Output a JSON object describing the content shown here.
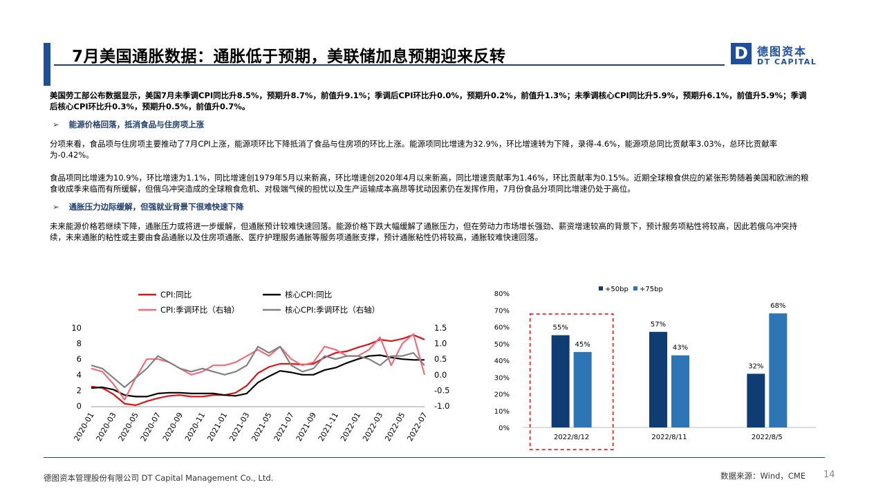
{
  "header": {
    "title": "7月美国通胀数据：通胀低于预期，美联储加息预期迎来反转",
    "logo_letter": "D",
    "logo_cn": "德图资本",
    "logo_en": "DT CAPITAL"
  },
  "body": {
    "intro": "美国劳工部公布数据显示，美国7月未季调CPI同比升8.5%，预期升8.7%，前值升9.1%；季调后CPI环比升0.0%，预期升0.2%，前值升1.3%；未季调核心CPI同比升5.9%，预期升6.1%，前值升5.9%；季调后核心CPI环比升0.3%，预期升0.5%，前值升0.7%。",
    "section1_arrow": "➢",
    "section1_title": "能源价格回落，抵消食品与住房项上涨",
    "para1": "分项来看，食品项与住房项主要推动了7月CPI上涨，能源项环比下降抵消了食品与住房项的环比上涨。能源项同比增速为32.9%，环比增速转为下降，录得-4.6%，能源项总同比贡献率3.03%，总环比贡献率为-0.42%。",
    "para2": "食品项同比增速为10.9%，环比增速为1.1%，同比增速创1979年5月以来新高，环比增速创2020年4月以来新高，同比增速贡献率为1.46%，环比贡献率为0.15%。近期全球粮食供应的紧张形势随着美国和欧洲的粮食收成季来临而有所缓解，但俄乌冲突造成的全球粮食危机、对极端气候的担忧以及生产运输成本高昂等扰动因素仍在发挥作用，7月份食品分项同比增速仍处于高位。",
    "section2_arrow": "➢",
    "section2_title": "通胀压力边际缓解，但强就业背景下很难快速下降",
    "para3": "未来能源价格若继续下降，通胀压力或将进一步缓解，但通胀预计较难快速回落。能源价格下跌大幅缓解了通胀压力，但在劳动力市场增长强劲、薪资增速较高的背景下，预计服务项粘性将较高，因此若俄乌冲突持续，未来通胀的粘性或主要由食品通胀以及住房项通胀、医疗护理服务通胀等服务项通胀支撑，预计通胀粘性仍将较高，通胀较难快速回落。"
  },
  "footer": {
    "company": "德图资本管理股份有限公司 DT Capital Management Co., Ltd.",
    "source": "数据来源：Wind，CME",
    "page": "14"
  },
  "colors": {
    "brand": "#1f4e9c",
    "cpi_yoy": "#d7141a",
    "core_yoy": "#000000",
    "cpi_mom": "#f06c7a",
    "core_mom": "#808080",
    "bar_50": "#0f3d73",
    "bar_75": "#2e75b6",
    "highlight": "#e8262d"
  },
  "chart_data": [
    {
      "type": "line",
      "legend": [
        "CPI:同比",
        "核心CPI:同比",
        "CPI:季调环比（右轴）",
        "核心CPI:季调环比（右轴）"
      ],
      "x_ticks": [
        "2020-01",
        "2020-03",
        "2020-05",
        "2020-07",
        "2020-09",
        "2020-11",
        "2021-01",
        "2021-03",
        "2021-05",
        "2021-07",
        "2021-09",
        "2021-11",
        "2022-01",
        "2022-03",
        "2022-05",
        "2022-07"
      ],
      "ylim_left": [
        0,
        10
      ],
      "yticks_left": [
        "0",
        "2",
        "4",
        "6",
        "8",
        "10"
      ],
      "ylim_right": [
        -1.0,
        1.5
      ],
      "yticks_right": [
        "-1.0",
        "-0.5",
        "0.0",
        "0.5",
        "1.0",
        "1.5"
      ],
      "x": [
        "2020-01",
        "2020-02",
        "2020-03",
        "2020-04",
        "2020-05",
        "2020-06",
        "2020-07",
        "2020-08",
        "2020-09",
        "2020-10",
        "2020-11",
        "2020-12",
        "2021-01",
        "2021-02",
        "2021-03",
        "2021-04",
        "2021-05",
        "2021-06",
        "2021-07",
        "2021-08",
        "2021-09",
        "2021-10",
        "2021-11",
        "2021-12",
        "2022-01",
        "2022-02",
        "2022-03",
        "2022-04",
        "2022-05",
        "2022-06",
        "2022-07"
      ],
      "series": [
        {
          "name": "CPI:同比",
          "axis": "left",
          "values": [
            2.5,
            2.3,
            1.5,
            0.3,
            0.1,
            0.6,
            1.0,
            1.3,
            1.4,
            1.2,
            1.2,
            1.4,
            1.4,
            1.7,
            2.6,
            4.2,
            5.0,
            5.4,
            5.4,
            5.3,
            5.4,
            6.2,
            6.8,
            7.0,
            7.5,
            7.9,
            8.5,
            8.3,
            8.6,
            9.1,
            8.5
          ]
        },
        {
          "name": "核心CPI:同比",
          "axis": "left",
          "values": [
            2.3,
            2.4,
            2.1,
            1.4,
            1.2,
            1.2,
            1.6,
            1.7,
            1.7,
            1.6,
            1.6,
            1.6,
            1.4,
            1.3,
            1.6,
            3.0,
            3.8,
            4.5,
            4.3,
            4.0,
            4.0,
            4.6,
            4.9,
            5.5,
            6.0,
            6.4,
            6.5,
            6.2,
            6.0,
            5.9,
            5.9
          ]
        },
        {
          "name": "CPI:季调环比（右轴）",
          "axis": "right",
          "values": [
            0.2,
            0.1,
            -0.3,
            -0.8,
            -0.1,
            0.5,
            0.5,
            0.4,
            0.2,
            0.0,
            0.1,
            0.3,
            0.3,
            0.4,
            0.6,
            0.8,
            0.6,
            0.9,
            0.5,
            0.3,
            0.4,
            0.9,
            0.8,
            0.6,
            0.6,
            0.8,
            1.2,
            0.3,
            1.0,
            1.3,
            0.0
          ]
        },
        {
          "name": "核心CPI:季调环比（右轴）",
          "axis": "right",
          "values": [
            0.3,
            0.2,
            -0.1,
            -0.4,
            -0.1,
            0.2,
            0.6,
            0.4,
            0.2,
            0.1,
            0.2,
            0.1,
            0.0,
            0.1,
            0.3,
            0.9,
            0.7,
            0.9,
            0.3,
            0.1,
            0.2,
            0.6,
            0.5,
            0.6,
            0.6,
            0.5,
            0.3,
            0.6,
            0.6,
            0.7,
            0.3
          ]
        }
      ]
    },
    {
      "type": "bar",
      "legend": [
        "+50bp",
        "+75bp"
      ],
      "categories": [
        "2022/8/12",
        "2022/8/11",
        "2022/8/5"
      ],
      "series": [
        {
          "name": "+50bp",
          "values": [
            55,
            57,
            32
          ],
          "labels": [
            "55%",
            "57%",
            "32%"
          ]
        },
        {
          "name": "+75bp",
          "values": [
            45,
            43,
            68
          ],
          "labels": [
            "45%",
            "43%",
            "68%"
          ]
        }
      ],
      "ylim": [
        0,
        80
      ],
      "yticks": [
        "0%",
        "10%",
        "20%",
        "30%",
        "40%",
        "50%",
        "60%",
        "70%",
        "80%"
      ],
      "highlight_category": "2022/8/12"
    }
  ]
}
